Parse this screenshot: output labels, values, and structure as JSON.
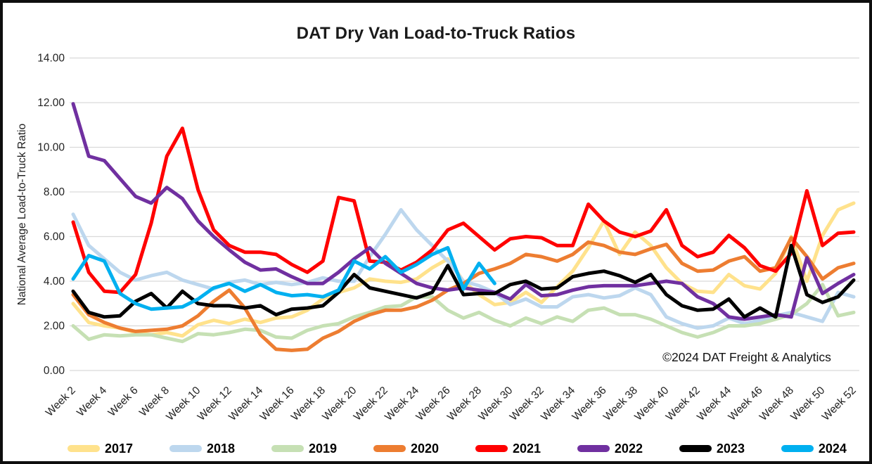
{
  "chart_data": {
    "type": "line",
    "title": "DAT Dry Van Load-to-Truck Ratios",
    "ylabel": "National Average Load-to-Truck Ratio",
    "xlabel": "",
    "copyright": "©2024 DAT Freight & Analytics",
    "ylim": [
      0,
      14
    ],
    "ytick_step": 2,
    "grid": "horizontal-only",
    "legend_position": "bottom",
    "xtick_prefix": "Week ",
    "xtick_weeks": [
      2,
      4,
      6,
      8,
      10,
      12,
      14,
      16,
      18,
      20,
      22,
      24,
      26,
      28,
      30,
      32,
      34,
      36,
      38,
      40,
      42,
      44,
      46,
      48,
      50,
      52
    ],
    "x_weeks": [
      2,
      3,
      4,
      5,
      6,
      7,
      8,
      9,
      10,
      11,
      12,
      13,
      14,
      15,
      16,
      17,
      18,
      19,
      20,
      21,
      22,
      23,
      24,
      25,
      26,
      27,
      28,
      29,
      30,
      31,
      32,
      33,
      34,
      35,
      36,
      37,
      38,
      39,
      40,
      41,
      42,
      43,
      44,
      45,
      46,
      47,
      48,
      49,
      50,
      51,
      52
    ],
    "series": [
      {
        "name": "2017",
        "color": "#FFE28C",
        "values": [
          3.0,
          2.15,
          2.0,
          1.9,
          1.7,
          1.6,
          1.7,
          1.55,
          2.05,
          2.25,
          2.1,
          2.3,
          2.15,
          2.35,
          2.4,
          2.7,
          3.2,
          3.5,
          3.7,
          4.1,
          4.0,
          3.95,
          4.1,
          4.6,
          5.0,
          4.0,
          3.4,
          2.95,
          3.05,
          3.5,
          3.05,
          3.75,
          4.45,
          5.5,
          6.7,
          5.2,
          6.2,
          5.6,
          4.6,
          3.9,
          3.55,
          3.5,
          4.3,
          3.8,
          3.65,
          4.35,
          6.0,
          4.0,
          6.05,
          7.2,
          7.5
        ]
      },
      {
        "name": "2018",
        "color": "#BDD7EE",
        "values": [
          7.0,
          5.6,
          5.0,
          4.4,
          4.05,
          4.25,
          4.4,
          4.05,
          3.85,
          3.65,
          3.95,
          4.05,
          3.85,
          3.95,
          3.85,
          3.95,
          4.15,
          4.0,
          4.0,
          5.1,
          6.1,
          7.2,
          6.3,
          5.6,
          4.9,
          4.0,
          3.8,
          3.5,
          2.95,
          3.2,
          2.85,
          2.85,
          3.3,
          3.4,
          3.25,
          3.35,
          3.7,
          3.4,
          2.4,
          2.1,
          1.9,
          2.0,
          2.35,
          2.1,
          2.25,
          2.45,
          2.6,
          2.4,
          2.2,
          3.5,
          3.3
        ]
      },
      {
        "name": "2019",
        "color": "#C6E0B4",
        "values": [
          2.0,
          1.4,
          1.6,
          1.55,
          1.6,
          1.6,
          1.45,
          1.3,
          1.65,
          1.6,
          1.7,
          1.85,
          1.8,
          1.5,
          1.45,
          1.8,
          2.0,
          2.1,
          2.4,
          2.6,
          2.85,
          2.9,
          3.3,
          3.3,
          2.7,
          2.35,
          2.6,
          2.25,
          2.0,
          2.35,
          2.1,
          2.4,
          2.2,
          2.7,
          2.8,
          2.5,
          2.5,
          2.3,
          2.0,
          1.7,
          1.5,
          1.7,
          2.0,
          2.0,
          2.1,
          2.3,
          2.5,
          3.0,
          3.85,
          2.45,
          2.6
        ]
      },
      {
        "name": "2020",
        "color": "#ED7D31",
        "values": [
          3.4,
          2.5,
          2.15,
          1.9,
          1.75,
          1.8,
          1.85,
          2.0,
          2.45,
          3.1,
          3.6,
          2.8,
          1.6,
          0.95,
          0.9,
          0.95,
          1.45,
          1.75,
          2.2,
          2.5,
          2.7,
          2.7,
          2.85,
          3.15,
          3.6,
          3.9,
          4.35,
          4.55,
          4.8,
          5.2,
          5.1,
          4.9,
          5.2,
          5.75,
          5.6,
          5.3,
          5.2,
          5.45,
          5.65,
          4.8,
          4.45,
          4.5,
          4.9,
          5.1,
          4.45,
          4.6,
          5.95,
          5.1,
          4.1,
          4.6,
          4.8
        ]
      },
      {
        "name": "2021",
        "color": "#FF0000",
        "values": [
          6.65,
          4.4,
          3.55,
          3.5,
          4.3,
          6.6,
          9.6,
          10.85,
          8.1,
          6.3,
          5.6,
          5.3,
          5.3,
          5.2,
          4.75,
          4.4,
          4.9,
          7.75,
          7.6,
          4.9,
          4.85,
          4.5,
          4.85,
          5.4,
          6.3,
          6.6,
          6.0,
          5.4,
          5.9,
          6.0,
          5.95,
          5.6,
          5.6,
          7.45,
          6.7,
          6.2,
          6.0,
          6.25,
          7.2,
          5.6,
          5.1,
          5.3,
          6.05,
          5.5,
          4.7,
          4.45,
          5.25,
          8.05,
          5.6,
          6.15,
          6.2
        ]
      },
      {
        "name": "2022",
        "color": "#7030A0",
        "values": [
          11.95,
          9.6,
          9.4,
          8.6,
          7.8,
          7.5,
          8.2,
          7.7,
          6.7,
          6.0,
          5.4,
          4.85,
          4.5,
          4.55,
          4.2,
          3.9,
          3.9,
          4.4,
          5.0,
          5.5,
          4.8,
          4.35,
          3.9,
          3.7,
          3.6,
          3.7,
          3.6,
          3.5,
          3.2,
          3.85,
          3.35,
          3.4,
          3.6,
          3.75,
          3.8,
          3.8,
          3.8,
          3.9,
          4.0,
          3.9,
          3.3,
          3.0,
          2.4,
          2.3,
          2.4,
          2.5,
          2.4,
          5.05,
          3.45,
          3.9,
          4.3
        ]
      },
      {
        "name": "2023",
        "color": "#000000",
        "values": [
          3.55,
          2.6,
          2.4,
          2.45,
          3.1,
          3.45,
          2.8,
          3.55,
          3.0,
          2.9,
          2.9,
          2.8,
          2.9,
          2.5,
          2.75,
          2.8,
          2.9,
          3.5,
          4.3,
          3.7,
          3.55,
          3.4,
          3.25,
          3.5,
          4.7,
          3.4,
          3.45,
          3.45,
          3.85,
          4.0,
          3.65,
          3.7,
          4.2,
          4.35,
          4.45,
          4.25,
          3.95,
          4.3,
          3.4,
          2.9,
          2.7,
          2.75,
          3.2,
          2.4,
          2.8,
          2.4,
          5.6,
          3.4,
          3.05,
          3.3,
          4.05
        ]
      },
      {
        "name": "2024",
        "color": "#00B0F0",
        "values": [
          4.1,
          5.15,
          4.9,
          3.45,
          3.0,
          2.75,
          2.8,
          2.85,
          3.2,
          3.7,
          3.9,
          3.55,
          3.85,
          3.5,
          3.35,
          3.4,
          3.3,
          3.6,
          4.9,
          4.55,
          5.1,
          4.4,
          4.75,
          5.2,
          5.5,
          3.65,
          4.8,
          3.9,
          null,
          null,
          null,
          null,
          null,
          null,
          null,
          null,
          null,
          null,
          null,
          null,
          null,
          null,
          null,
          null,
          null,
          null,
          null,
          null,
          null,
          null,
          null
        ]
      }
    ]
  }
}
